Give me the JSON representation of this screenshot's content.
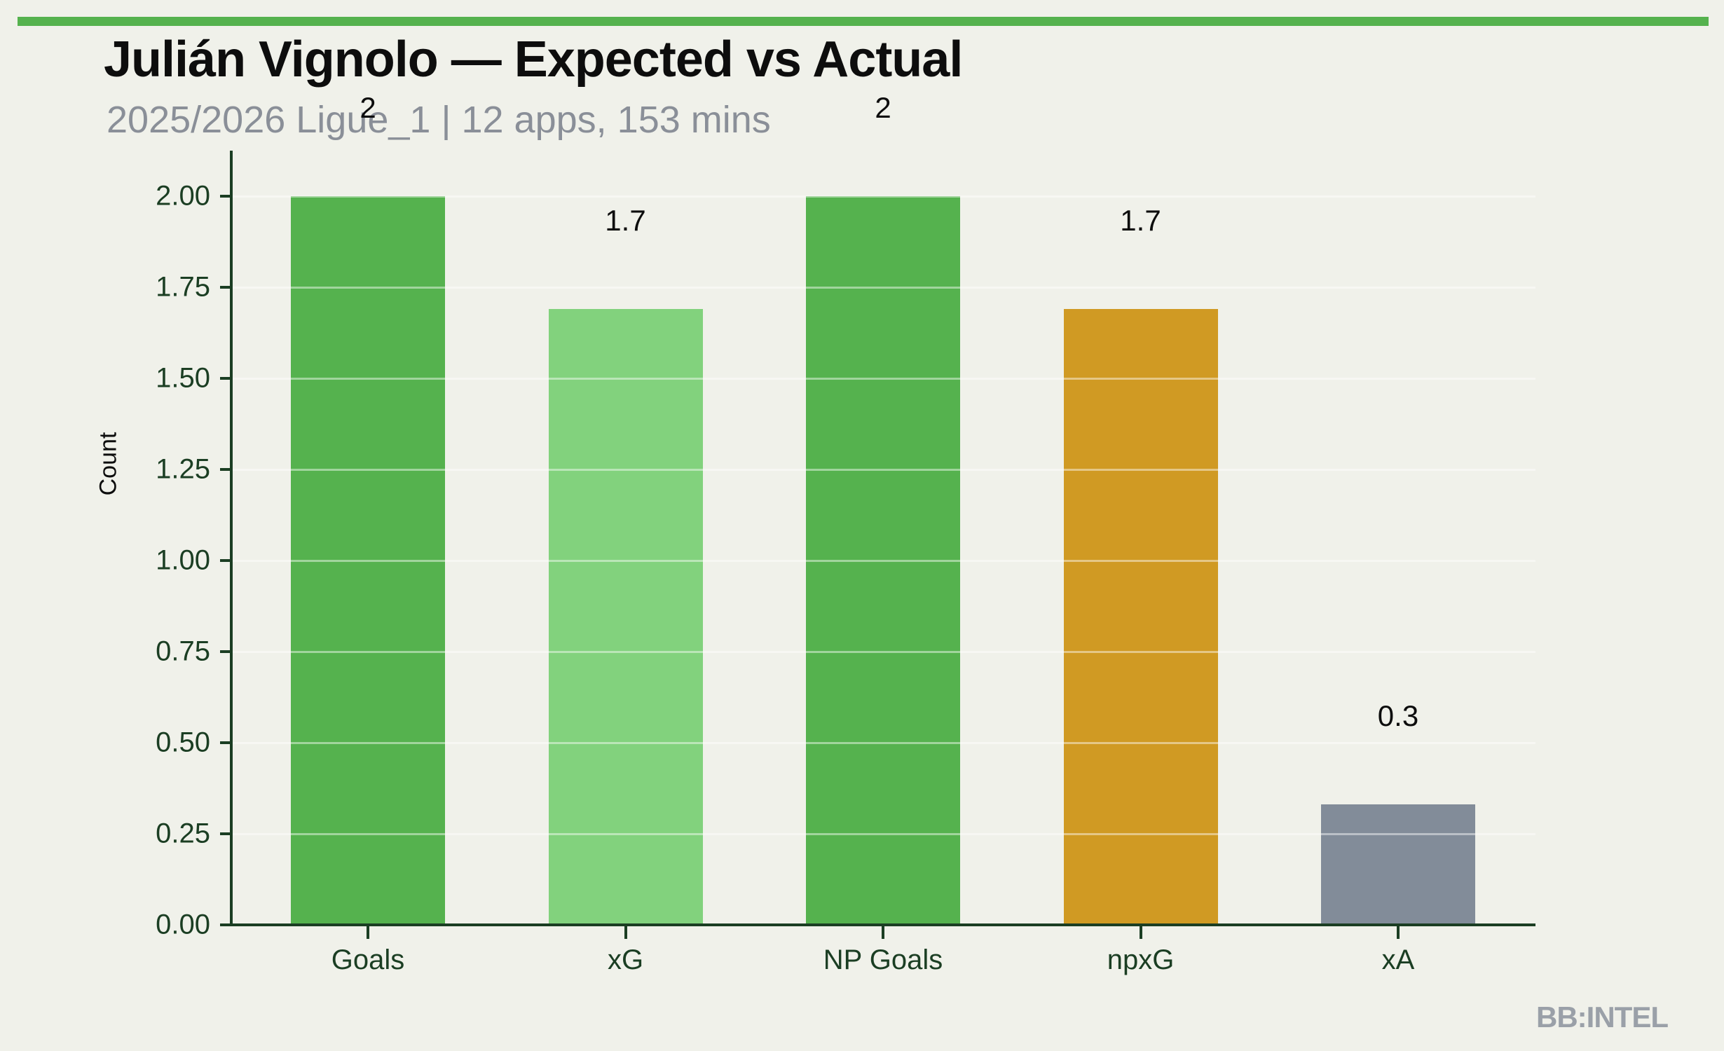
{
  "page": {
    "title": "Julián Vignolo — Expected vs Actual",
    "subtitle": "2025/2026 Ligue_1 | 12 apps, 153 mins",
    "watermark": "BB:INTEL"
  },
  "colors": {
    "background": "#f0f1ea",
    "accent_strip": "#55b24e",
    "axis_dark_green": "#1b3e23",
    "subtitle_gray": "#8a8f98",
    "watermark_gray": "#9aa0a8"
  },
  "chart_data": {
    "type": "bar",
    "title": "Julián Vignolo — Expected vs Actual",
    "subtitle": "2025/2026 Ligue_1 | 12 apps, 153 mins",
    "categories": [
      "Goals",
      "xG",
      "NP Goals",
      "npxG",
      "xA"
    ],
    "values": [
      2,
      1.69,
      2,
      1.69,
      0.33
    ],
    "bar_labels": [
      "2",
      "1.7",
      "2",
      "1.7",
      "0.3"
    ],
    "bar_colors": [
      "#55b24e",
      "#82d27d",
      "#55b24e",
      "#d09a23",
      "#828c99"
    ],
    "xlabel": "",
    "ylabel": "Count",
    "ylim": [
      0,
      2.12
    ],
    "ytick_values": [
      0,
      0.25,
      0.5,
      0.75,
      1,
      1.25,
      1.5,
      1.75,
      2
    ],
    "ytick_labels": [
      "0.00",
      "0.25",
      "0.50",
      "0.75",
      "1.00",
      "1.25",
      "1.50",
      "1.75",
      "2.00"
    ],
    "grid": "horizontal-only, light lines drawn over bars",
    "legend": "none"
  }
}
